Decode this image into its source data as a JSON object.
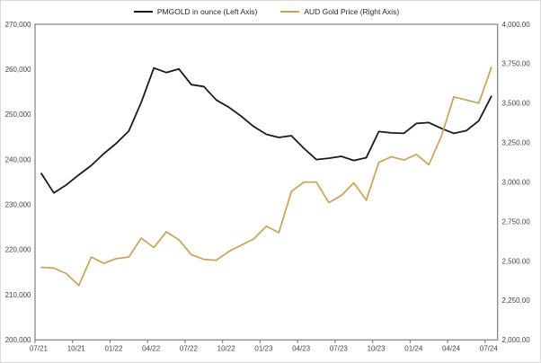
{
  "chart_data": {
    "type": "line",
    "title": "",
    "grid": false,
    "legend_position": "top-center",
    "months": [
      "07/21",
      "08/21",
      "09/21",
      "10/21",
      "11/21",
      "12/21",
      "01/22",
      "02/22",
      "03/22",
      "04/22",
      "05/22",
      "06/22",
      "07/22",
      "08/22",
      "09/22",
      "10/22",
      "11/22",
      "12/22",
      "01/23",
      "02/23",
      "03/23",
      "04/23",
      "05/23",
      "06/23",
      "07/23",
      "08/23",
      "09/23",
      "10/23",
      "11/23",
      "12/23",
      "01/24",
      "02/24",
      "03/24",
      "04/24",
      "05/24",
      "06/24",
      "07/24"
    ],
    "x_tick_labels": [
      "07/21",
      "10/21",
      "01/22",
      "04/22",
      "07/22",
      "10/22",
      "01/23",
      "04/23",
      "07/23",
      "10/23",
      "01/24",
      "04/24",
      "07/24"
    ],
    "series": [
      {
        "name": "PMGOLD in ounce (Left Axis)",
        "axis": "left",
        "color": "#1a1a1a",
        "width": 1.8,
        "values": [
          236900,
          232600,
          234400,
          236600,
          238700,
          241300,
          243600,
          246300,
          252700,
          260300,
          259300,
          260100,
          256600,
          256200,
          253200,
          251600,
          249600,
          247300,
          245600,
          244900,
          245300,
          242500,
          240000,
          240300,
          240700,
          239800,
          240400,
          246200,
          245900,
          245800,
          248000,
          248200,
          246900,
          245800,
          246400,
          248600,
          254000
        ]
      },
      {
        "name": "AUD Gold Price (Right Axis)",
        "axis": "right",
        "color": "#c9a258",
        "width": 1.7,
        "values": [
          2460,
          2455,
          2420,
          2345,
          2525,
          2485,
          2515,
          2525,
          2645,
          2585,
          2685,
          2635,
          2540,
          2510,
          2505,
          2560,
          2600,
          2640,
          2720,
          2680,
          2940,
          3000,
          3000,
          2870,
          2915,
          2995,
          2885,
          3125,
          3160,
          3140,
          3175,
          3110,
          3290,
          3540,
          3520,
          3500,
          3725
        ]
      }
    ],
    "left_axis": {
      "min": 200000,
      "max": 270000,
      "step": 10000,
      "tick_labels": [
        "270,000",
        "260,000",
        "250,000",
        "240,000",
        "230,000",
        "220,000",
        "210,000",
        "200,000"
      ]
    },
    "right_axis": {
      "min": 2000,
      "max": 4000,
      "step": 250,
      "tick_labels": [
        "4,000.00",
        "3,750.00",
        "3,500.00",
        "3,250.00",
        "3,000.00",
        "2,750.00",
        "2,500.00",
        "2,250.00",
        "2,000.00"
      ]
    },
    "style": {
      "axis_color": "#7f7f7f",
      "label_color": "#444444",
      "background": "#ffffff"
    }
  }
}
